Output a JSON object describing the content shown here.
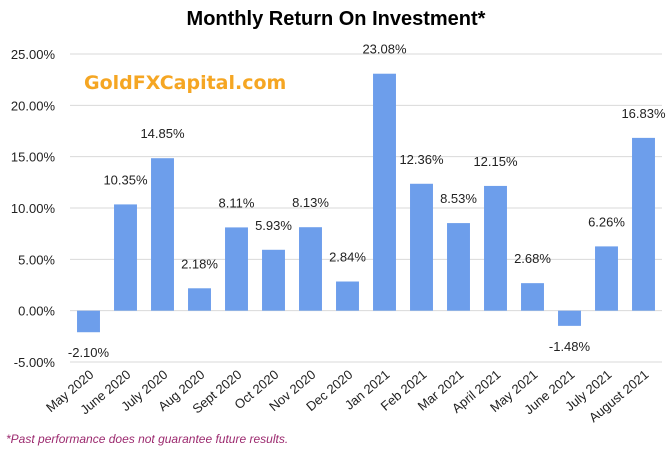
{
  "chart_data": {
    "type": "bar",
    "title": "Monthly Return On Investment*",
    "xlabel": "",
    "ylabel": "",
    "categories": [
      "May 2020",
      "June 2020",
      "July 2020",
      "Aug 2020",
      "Sept 2020",
      "Oct 2020",
      "Nov 2020",
      "Dec 2020",
      "Jan 2021",
      "Feb 2021",
      "Mar 2021",
      "April 2021",
      "May 2021",
      "June 2021",
      "July 2021",
      "August 2021"
    ],
    "values": [
      -2.1,
      10.35,
      14.85,
      2.18,
      8.11,
      5.93,
      8.13,
      2.84,
      23.08,
      12.36,
      8.53,
      12.15,
      2.68,
      -1.48,
      6.26,
      16.83
    ],
    "data_labels": [
      "-2.10%",
      "10.35%",
      "14.85%",
      "2.18%",
      "8.11%",
      "5.93%",
      "8.13%",
      "2.84%",
      "23.08%",
      "12.36%",
      "8.53%",
      "12.15%",
      "2.68%",
      "-1.48%",
      "6.26%",
      "16.83%"
    ],
    "ylim": [
      -5,
      25
    ],
    "yticks": [
      -5,
      0,
      5,
      10,
      15,
      20,
      25
    ],
    "ytick_labels": [
      "-5.00%",
      "0.00%",
      "5.00%",
      "10.00%",
      "15.00%",
      "20.00%",
      "25.00%"
    ],
    "grid": true,
    "bar_color": "#6d9eeb",
    "grid_color": "#d9d9d9"
  },
  "watermark": {
    "text": "GoldFXCapital.com",
    "color": "#f5a623"
  },
  "footnote": {
    "text": "*Past performance does not guarantee future results.",
    "color": "#9c2a6f"
  }
}
